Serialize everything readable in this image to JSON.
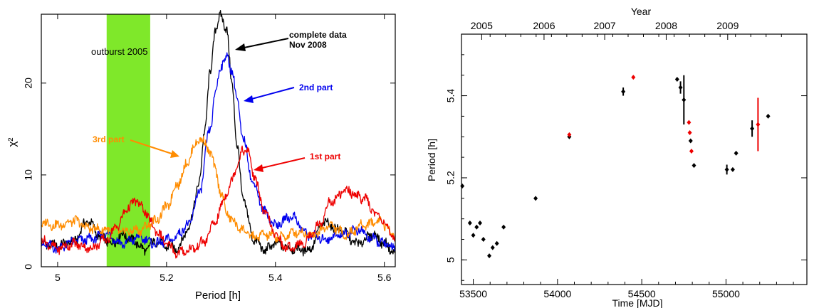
{
  "chart_data": [
    {
      "type": "line",
      "xlabel": "Period [h]",
      "ylabel": "χ²",
      "xlim": [
        4.97,
        5.62
      ],
      "ylim": [
        0,
        27.5
      ],
      "x_ticks": [
        5,
        5.2,
        5.4,
        5.6
      ],
      "y_ticks": [
        0,
        10,
        20
      ],
      "grid": false,
      "shaded_band": {
        "x_range": [
          5.09,
          5.17
        ],
        "color": "#7fe82a",
        "label": "outburst 2005"
      },
      "series": [
        {
          "name": "complete data Nov 2008",
          "color": "#000000",
          "x": [
            4.97,
            5.0,
            5.03,
            5.055,
            5.08,
            5.1,
            5.12,
            5.14,
            5.16,
            5.18,
            5.2,
            5.22,
            5.24,
            5.26,
            5.27,
            5.28,
            5.29,
            5.3,
            5.31,
            5.32,
            5.33,
            5.34,
            5.36,
            5.38,
            5.4,
            5.43,
            5.46,
            5.49,
            5.52,
            5.55,
            5.58,
            5.6,
            5.62
          ],
          "y": [
            2.5,
            2.3,
            2.8,
            5.0,
            3.2,
            2.5,
            3.5,
            2.8,
            1.8,
            2.8,
            2.2,
            2.0,
            4.2,
            9.0,
            15.0,
            21.0,
            26.0,
            27.3,
            26.0,
            20.0,
            13.0,
            7.5,
            3.0,
            1.8,
            2.5,
            2.0,
            1.8,
            4.8,
            4.0,
            2.5,
            3.5,
            2.5,
            1.5
          ]
        },
        {
          "name": "2nd part",
          "color": "#0000ee",
          "x": [
            4.97,
            5.0,
            5.03,
            5.06,
            5.09,
            5.12,
            5.15,
            5.18,
            5.21,
            5.24,
            5.26,
            5.28,
            5.29,
            5.3,
            5.31,
            5.32,
            5.33,
            5.34,
            5.36,
            5.38,
            5.4,
            5.43,
            5.46,
            5.49,
            5.52,
            5.55,
            5.58,
            5.6,
            5.62
          ],
          "y": [
            2.5,
            2.0,
            2.8,
            3.0,
            3.5,
            2.5,
            3.2,
            2.5,
            3.0,
            4.5,
            8.0,
            15.0,
            19.0,
            22.0,
            22.8,
            21.5,
            18.0,
            14.0,
            9.0,
            6.0,
            4.5,
            5.5,
            3.5,
            3.0,
            3.5,
            4.0,
            3.0,
            2.5,
            2.0
          ]
        },
        {
          "name": "3rd part",
          "color": "#ff8c00",
          "x": [
            4.97,
            5.0,
            5.03,
            5.06,
            5.09,
            5.12,
            5.15,
            5.18,
            5.2,
            5.22,
            5.24,
            5.25,
            5.26,
            5.27,
            5.28,
            5.29,
            5.3,
            5.31,
            5.32,
            5.34,
            5.36,
            5.38,
            5.41,
            5.44,
            5.47,
            5.5,
            5.53,
            5.56,
            5.59,
            5.62
          ],
          "y": [
            4.8,
            4.5,
            5.0,
            4.2,
            4.0,
            3.8,
            4.0,
            5.0,
            6.5,
            9.0,
            11.5,
            13.0,
            14.0,
            13.5,
            12.5,
            10.5,
            8.0,
            6.0,
            5.0,
            4.0,
            3.2,
            3.5,
            3.2,
            3.8,
            3.5,
            4.5,
            3.5,
            4.5,
            5.0,
            3.5
          ]
        },
        {
          "name": "1st part",
          "color": "#ee0000",
          "x": [
            4.97,
            5.0,
            5.03,
            5.06,
            5.09,
            5.11,
            5.13,
            5.145,
            5.16,
            5.18,
            5.2,
            5.22,
            5.25,
            5.27,
            5.29,
            5.31,
            5.33,
            5.34,
            5.35,
            5.36,
            5.38,
            5.4,
            5.42,
            5.45,
            5.48,
            5.5,
            5.53,
            5.56,
            5.59,
            5.62
          ],
          "y": [
            2.8,
            2.0,
            2.5,
            2.0,
            3.0,
            4.5,
            6.5,
            7.2,
            6.0,
            4.0,
            2.5,
            1.5,
            2.0,
            2.8,
            5.0,
            8.0,
            11.0,
            12.8,
            12.5,
            10.0,
            6.0,
            3.5,
            2.0,
            2.5,
            4.5,
            7.0,
            8.3,
            7.5,
            5.5,
            3.0
          ]
        }
      ],
      "annotations": [
        {
          "text": "complete data",
          "color": "#000000"
        },
        {
          "text": "Nov 2008",
          "color": "#000000"
        },
        {
          "text": "2nd part",
          "color": "#0000ee"
        },
        {
          "text": "3rd part",
          "color": "#ff8c00"
        },
        {
          "text": "1st part",
          "color": "#ee0000"
        },
        {
          "text": "outburst 2005",
          "color": "#000000"
        }
      ]
    },
    {
      "type": "scatter",
      "xlabel": "Time [MJD]",
      "ylabel": "Period [h]",
      "top_axis_label": "Year",
      "xlim": [
        53430,
        55480
      ],
      "ylim": [
        4.94,
        5.55
      ],
      "x_ticks": [
        53500,
        54000,
        54500,
        55000
      ],
      "y_ticks": [
        5,
        5.2,
        5.4
      ],
      "top_ticks": [
        {
          "label": "2005",
          "mjd": 53550
        },
        {
          "label": "2006",
          "mjd": 53920
        },
        {
          "label": "2007",
          "mjd": 54280
        },
        {
          "label": "2008",
          "mjd": 54645
        },
        {
          "label": "2009",
          "mjd": 55010
        }
      ],
      "grid": false,
      "series": [
        {
          "color": "#000000",
          "points": [
            {
              "x": 53435,
              "y": 5.18,
              "err": 0
            },
            {
              "x": 53480,
              "y": 5.09,
              "err": 0
            },
            {
              "x": 53500,
              "y": 5.06,
              "err": 0
            },
            {
              "x": 53520,
              "y": 5.08,
              "err": 0
            },
            {
              "x": 53540,
              "y": 5.09,
              "err": 0
            },
            {
              "x": 53560,
              "y": 5.05,
              "err": 0
            },
            {
              "x": 53595,
              "y": 5.01,
              "err": 0
            },
            {
              "x": 53615,
              "y": 5.03,
              "err": 0
            },
            {
              "x": 53640,
              "y": 5.04,
              "err": 0
            },
            {
              "x": 53680,
              "y": 5.08,
              "err": 0
            },
            {
              "x": 53870,
              "y": 5.15,
              "err": 0
            },
            {
              "x": 54070,
              "y": 5.3,
              "err": 0
            },
            {
              "x": 54390,
              "y": 5.41,
              "err": 0.01
            },
            {
              "x": 54710,
              "y": 5.44,
              "err": 0
            },
            {
              "x": 54730,
              "y": 5.42,
              "err": 0.015
            },
            {
              "x": 54750,
              "y": 5.39,
              "err": 0.06
            },
            {
              "x": 54790,
              "y": 5.29,
              "err": 0
            },
            {
              "x": 54810,
              "y": 5.23,
              "err": 0
            },
            {
              "x": 55005,
              "y": 5.22,
              "err": 0.012
            },
            {
              "x": 55040,
              "y": 5.22,
              "err": 0
            },
            {
              "x": 55060,
              "y": 5.26,
              "err": 0
            },
            {
              "x": 55155,
              "y": 5.32,
              "err": 0.02
            },
            {
              "x": 55250,
              "y": 5.35,
              "err": 0
            }
          ]
        },
        {
          "color": "#ee0000",
          "points": [
            {
              "x": 54070,
              "y": 5.305,
              "err": 0
            },
            {
              "x": 54450,
              "y": 5.445,
              "err": 0
            },
            {
              "x": 54780,
              "y": 5.335,
              "err": 0
            },
            {
              "x": 54785,
              "y": 5.31,
              "err": 0
            },
            {
              "x": 54795,
              "y": 5.265,
              "err": 0
            },
            {
              "x": 55190,
              "y": 5.33,
              "err": 0.065
            }
          ]
        }
      ]
    }
  ]
}
